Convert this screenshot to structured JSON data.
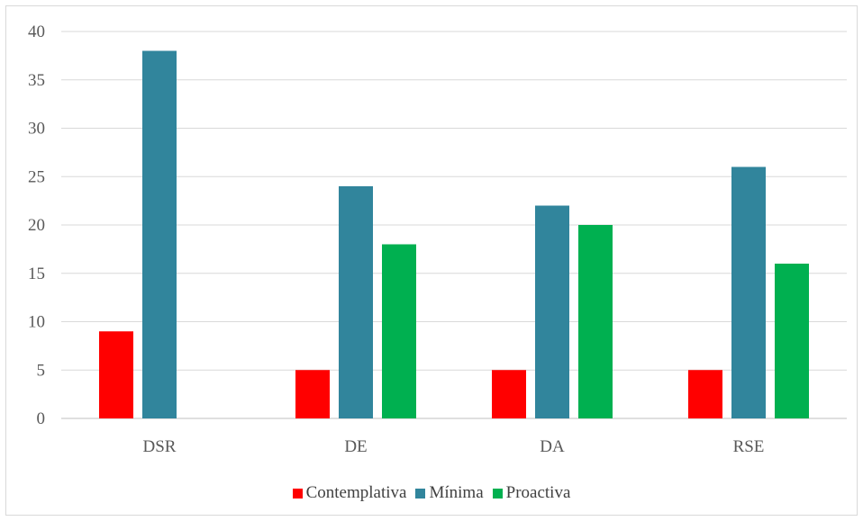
{
  "chart_data": {
    "type": "bar",
    "categories": [
      "DSR",
      "DE",
      "DA",
      "RSE"
    ],
    "series": [
      {
        "name": "Contemplativa",
        "color": "#ff0000",
        "values": [
          9,
          5,
          5,
          5
        ]
      },
      {
        "name": "Mínima",
        "color": "#31859c",
        "values": [
          38,
          24,
          22,
          26
        ]
      },
      {
        "name": "Proactiva",
        "color": "#00b050",
        "values": [
          null,
          18,
          20,
          16
        ]
      }
    ],
    "title": "",
    "xlabel": "",
    "ylabel": "",
    "ylim": [
      0,
      40
    ],
    "yticks": [
      0,
      5,
      10,
      15,
      20,
      25,
      30,
      35,
      40
    ],
    "grid": true,
    "legend_position": "bottom"
  }
}
